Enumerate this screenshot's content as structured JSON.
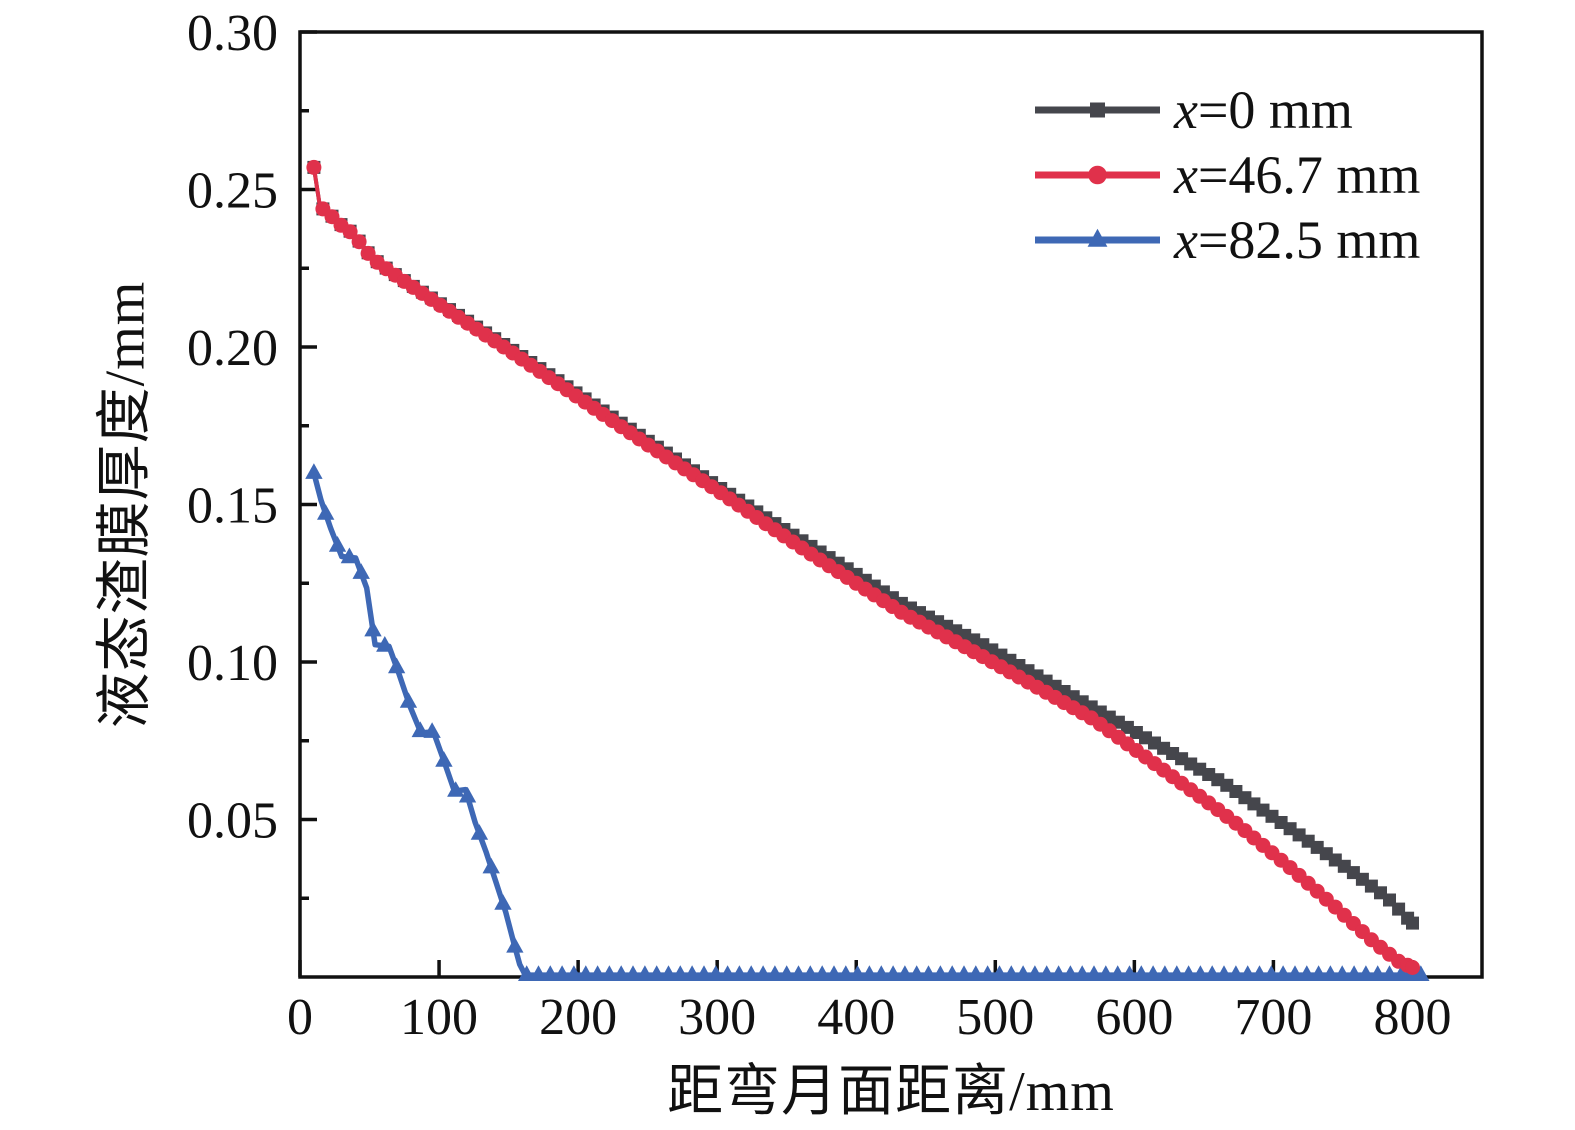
{
  "page": {
    "background": "#ffffff"
  },
  "chart_data": {
    "type": "line",
    "title": "",
    "xlabel": "距弯月面距离/mm",
    "ylabel": "液态渣膜厚度/mm",
    "xlim": [
      0,
      850
    ],
    "ylim": [
      0,
      0.3
    ],
    "grid": false,
    "axis_color": "#111111",
    "x_ticks": [
      {
        "value": 0,
        "label": "0"
      },
      {
        "value": 100,
        "label": "100"
      },
      {
        "value": 200,
        "label": "200"
      },
      {
        "value": 300,
        "label": "300"
      },
      {
        "value": 400,
        "label": "400"
      },
      {
        "value": 500,
        "label": "500"
      },
      {
        "value": 600,
        "label": "600"
      },
      {
        "value": 700,
        "label": "700"
      },
      {
        "value": 800,
        "label": "800"
      }
    ],
    "y_ticks": [
      {
        "value": 0.05,
        "label": "0.05"
      },
      {
        "value": 0.1,
        "label": "0.10"
      },
      {
        "value": 0.15,
        "label": "0.15"
      },
      {
        "value": 0.2,
        "label": "0.20"
      },
      {
        "value": 0.25,
        "label": "0.25"
      },
      {
        "value": 0.3,
        "label": "0.30"
      }
    ],
    "y_minor_ticks": [
      0.025,
      0.075,
      0.125,
      0.175,
      0.225,
      0.275
    ],
    "legend_position": "top-right",
    "series": [
      {
        "name": "x=0 mm",
        "color": "#45464c",
        "marker": "square",
        "marker_step_mm": 6.5,
        "points": [
          [
            10,
            0.257
          ],
          [
            14,
            0.2455
          ],
          [
            17,
            0.2435
          ],
          [
            24,
            0.2412
          ],
          [
            31,
            0.2382
          ],
          [
            38,
            0.2362
          ],
          [
            45,
            0.2322
          ],
          [
            52,
            0.2282
          ],
          [
            71,
            0.2222
          ],
          [
            100,
            0.214
          ],
          [
            150,
            0.1998
          ],
          [
            200,
            0.185
          ],
          [
            250,
            0.1702
          ],
          [
            300,
            0.1558
          ],
          [
            350,
            0.1415
          ],
          [
            400,
            0.1278
          ],
          [
            432,
            0.1187
          ],
          [
            489,
            0.106
          ],
          [
            550,
            0.0905
          ],
          [
            600,
            0.078
          ],
          [
            664,
            0.0616
          ],
          [
            706,
            0.0489
          ],
          [
            731,
            0.0413
          ],
          [
            757,
            0.0333
          ],
          [
            782,
            0.0251
          ],
          [
            800,
            0.0171
          ]
        ]
      },
      {
        "name": "x=46.7 mm",
        "color": "#e0314b",
        "marker": "circle",
        "marker_step_mm": 6.5,
        "points": [
          [
            10,
            0.257
          ],
          [
            14,
            0.2455
          ],
          [
            17,
            0.2435
          ],
          [
            24,
            0.241
          ],
          [
            31,
            0.238
          ],
          [
            38,
            0.236
          ],
          [
            45,
            0.232
          ],
          [
            52,
            0.228
          ],
          [
            71,
            0.222
          ],
          [
            100,
            0.2135
          ],
          [
            150,
            0.199
          ],
          [
            200,
            0.184
          ],
          [
            250,
            0.169
          ],
          [
            300,
            0.1545
          ],
          [
            331,
            0.1451
          ],
          [
            370,
            0.1335
          ],
          [
            400,
            0.125
          ],
          [
            432,
            0.1159
          ],
          [
            489,
            0.1022
          ],
          [
            530,
            0.092
          ],
          [
            570,
            0.082
          ],
          [
            610,
            0.0692
          ],
          [
            650,
            0.0564
          ],
          [
            672,
            0.0492
          ],
          [
            714,
            0.034
          ],
          [
            745,
            0.022
          ],
          [
            773,
            0.0108
          ],
          [
            790,
            0.005
          ],
          [
            800,
            0.003
          ]
        ]
      },
      {
        "name": "x=82.5 mm",
        "color": "#3e68b5",
        "marker": "triangle",
        "marker_step_mm": 8.5,
        "points": [
          [
            10,
            0.16
          ],
          [
            15,
            0.1515
          ],
          [
            22,
            0.1425
          ],
          [
            30,
            0.1335
          ],
          [
            40,
            0.133
          ],
          [
            48,
            0.1235
          ],
          [
            54,
            0.1055
          ],
          [
            64,
            0.105
          ],
          [
            71,
            0.0965
          ],
          [
            79,
            0.086
          ],
          [
            87,
            0.0775
          ],
          [
            96,
            0.0778
          ],
          [
            104,
            0.068
          ],
          [
            111,
            0.059
          ],
          [
            119,
            0.0595
          ],
          [
            126,
            0.049
          ],
          [
            134,
            0.0395
          ],
          [
            141,
            0.03
          ],
          [
            148,
            0.0205
          ],
          [
            153,
            0.012
          ],
          [
            158,
            0.004
          ],
          [
            162,
            0.0006
          ],
          [
            806,
            0.0006
          ]
        ]
      }
    ]
  }
}
